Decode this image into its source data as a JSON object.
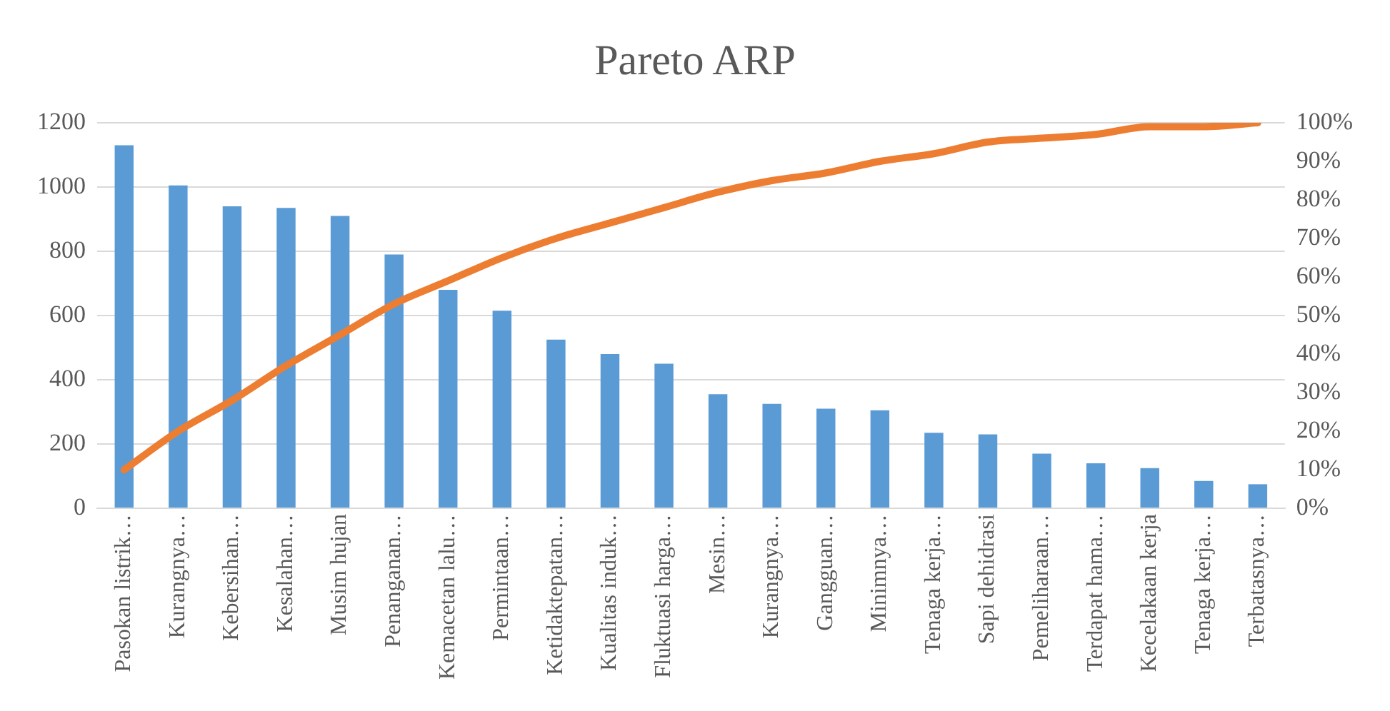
{
  "chart_data": {
    "type": "bar",
    "title": "Pareto ARP",
    "categories": [
      "Pasokan listrik…",
      "Kurangnya…",
      "Kebersihan…",
      "Kesalahan…",
      "Musim hujan",
      "Penanganan…",
      "Kemacetan lalu…",
      "Permintaan…",
      "Ketidaktepatan…",
      "Kualitas induk…",
      "Fluktuasi harga…",
      "Mesin…",
      "Kurangnya…",
      "Gangguan…",
      "Minimnya…",
      "Tenaga kerja…",
      "Sapi dehidrasi",
      "Pemeliharaan…",
      "Terdapat hama…",
      "Kecelakaan kerja",
      "Tenaga kerja…",
      "Terbatasnya…"
    ],
    "series": [
      {
        "color": "#5b9bd5",
        "values": [
          1130,
          1005,
          940,
          935,
          910,
          790,
          680,
          615,
          525,
          480,
          450,
          355,
          325,
          310,
          305,
          235,
          230,
          170,
          140,
          125,
          85,
          75
        ]
      },
      {
        "type": "line",
        "axis": "y2",
        "color": "#ed7d31",
        "values": [
          10,
          20,
          28,
          37,
          45,
          53,
          59,
          65,
          70,
          74,
          78,
          82,
          85,
          87,
          90,
          92,
          95,
          96,
          97,
          99,
          99,
          100
        ]
      }
    ],
    "ylim": [
      0,
      1200
    ],
    "yticks": [
      0,
      200,
      400,
      600,
      800,
      1000,
      1200
    ],
    "y2lim": [
      0,
      100
    ],
    "y2ticks": [
      {
        "value": 0,
        "label": "0%"
      },
      {
        "value": 10,
        "label": "10%"
      },
      {
        "value": 20,
        "label": "20%"
      },
      {
        "value": 30,
        "label": "30%"
      },
      {
        "value": 40,
        "label": "40%"
      },
      {
        "value": 50,
        "label": "50%"
      },
      {
        "value": 60,
        "label": "60%"
      },
      {
        "value": 70,
        "label": "70%"
      },
      {
        "value": 80,
        "label": "80%"
      },
      {
        "value": 90,
        "label": "90%"
      },
      {
        "value": 100,
        "label": "100%"
      }
    ],
    "grid": "y",
    "legend": false,
    "marker": "none",
    "line_style": "solid"
  }
}
